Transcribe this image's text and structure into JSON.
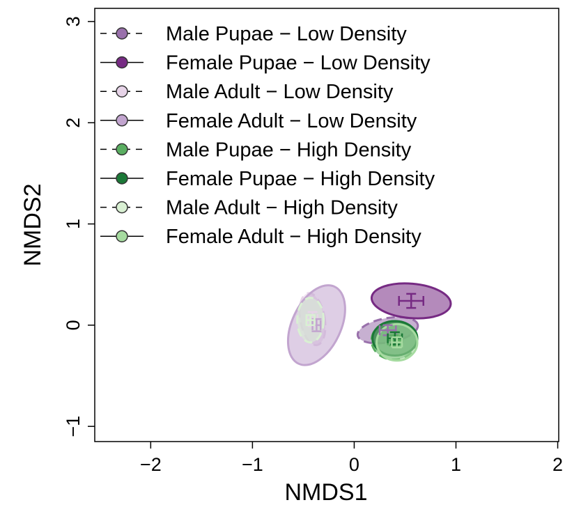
{
  "chart_data": {
    "type": "ordination",
    "xlabel": "NMDS1",
    "ylabel": "NMDS2",
    "xlim": [
      -2.55,
      2.01
    ],
    "ylim": [
      -1.15,
      3.13
    ],
    "xticks": [
      {
        "value": -2,
        "label": "−2"
      },
      {
        "value": -1,
        "label": "−1"
      },
      0,
      1,
      2
    ],
    "yticks": [
      {
        "value": -1,
        "label": "−1"
      },
      0,
      1,
      2,
      3
    ],
    "legend": "top-left",
    "series": [
      {
        "name": "Male Pupae − Low Density",
        "color": "#9970ab",
        "linestyle": "dashed",
        "x": 0.33,
        "y": -0.05,
        "xerr": 0.08,
        "yerr": 0.05,
        "rx": 0.3,
        "ry": 0.12,
        "angle": 10
      },
      {
        "name": "Female Pupae − Low Density",
        "color": "#762a83",
        "linestyle": "solid",
        "x": 0.56,
        "y": 0.24,
        "xerr": 0.12,
        "yerr": 0.07,
        "rx": 0.39,
        "ry": 0.17,
        "angle": -5
      },
      {
        "name": "Male Adult − Low Density",
        "color": "#e7d4e8",
        "linestyle": "dashed",
        "x": -0.41,
        "y": 0.06,
        "xerr": 0.05,
        "yerr": 0.07,
        "rx": 0.12,
        "ry": 0.26,
        "angle": 10
      },
      {
        "name": "Female Adult − Low Density",
        "color": "#c2a5cf",
        "linestyle": "solid",
        "x": -0.37,
        "y": 0.0,
        "xerr": 0.04,
        "yerr": 0.06,
        "rx": 0.24,
        "ry": 0.42,
        "angle": -25
      },
      {
        "name": "Male Pupae − High Density",
        "color": "#5aae61",
        "linestyle": "dashed",
        "x": 0.39,
        "y": -0.15,
        "xerr": 0.06,
        "yerr": 0.05,
        "rx": 0.22,
        "ry": 0.19,
        "angle": 0
      },
      {
        "name": "Female Pupae − High Density",
        "color": "#1b7837",
        "linestyle": "solid",
        "x": 0.4,
        "y": -0.13,
        "xerr": 0.07,
        "yerr": 0.06,
        "rx": 0.22,
        "ry": 0.17,
        "angle": 0
      },
      {
        "name": "Male Adult − High Density",
        "color": "#d9f0d3",
        "linestyle": "dashed",
        "x": -0.43,
        "y": 0.05,
        "xerr": 0.04,
        "yerr": 0.05,
        "rx": 0.13,
        "ry": 0.22,
        "angle": 0
      },
      {
        "name": "Female Adult − High Density",
        "color": "#a6dba0",
        "linestyle": "solid",
        "x": 0.42,
        "y": -0.17,
        "xerr": 0.05,
        "yerr": 0.05,
        "rx": 0.2,
        "ry": 0.18,
        "angle": 0
      }
    ]
  }
}
